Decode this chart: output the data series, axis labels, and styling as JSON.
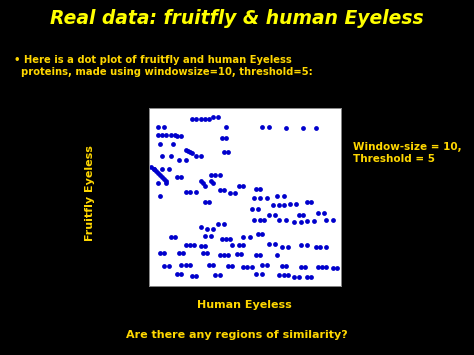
{
  "title": "Real data: fruitfly & human Eyeless",
  "title_color": "#FFFF00",
  "bullet_text": "Here is a dot plot of fruitfly and human Eyeless\n  proteins, made using windowsize=10, threshold=5:",
  "bullet_color": "#FFD700",
  "xlabel": "Human Eyeless",
  "xlabel_color": "#FFD700",
  "ylabel": "Fruitfly Eyeless",
  "ylabel_color": "#FFD700",
  "question": "Are there any regions of similarity?",
  "question_color": "#FFD700",
  "annotation": "Window-size = 10,\nThreshold = 5",
  "annotation_color": "#FFD700",
  "background_color": "#000000",
  "plot_bg_color": "#ffffff",
  "dot_color": "#0000CC",
  "xlim": [
    0,
    450
  ],
  "ylim": [
    0,
    850
  ],
  "xticks": [
    0,
    100,
    200,
    300,
    400
  ],
  "yticks": [
    0,
    200,
    400,
    600,
    800
  ],
  "dot_clusters": [
    [
      20,
      760
    ],
    [
      35,
      760
    ],
    [
      180,
      760
    ],
    [
      265,
      760
    ],
    [
      280,
      760
    ],
    [
      320,
      755
    ],
    [
      360,
      755
    ],
    [
      390,
      755
    ],
    [
      25,
      680
    ],
    [
      55,
      680
    ],
    [
      30,
      620
    ],
    [
      50,
      620
    ],
    [
      10,
      560
    ],
    [
      30,
      560
    ],
    [
      45,
      560
    ],
    [
      70,
      600
    ],
    [
      85,
      600
    ],
    [
      110,
      620
    ],
    [
      120,
      620
    ],
    [
      20,
      490
    ],
    [
      40,
      490
    ],
    [
      65,
      520
    ],
    [
      75,
      520
    ],
    [
      145,
      530
    ],
    [
      155,
      530
    ],
    [
      165,
      530
    ],
    [
      25,
      430
    ],
    [
      85,
      450
    ],
    [
      95,
      450
    ],
    [
      110,
      450
    ],
    [
      165,
      460
    ],
    [
      175,
      460
    ],
    [
      190,
      445
    ],
    [
      200,
      445
    ],
    [
      210,
      480
    ],
    [
      220,
      480
    ],
    [
      250,
      465
    ],
    [
      260,
      465
    ],
    [
      130,
      400
    ],
    [
      140,
      400
    ],
    [
      245,
      420
    ],
    [
      260,
      420
    ],
    [
      275,
      420
    ],
    [
      300,
      430
    ],
    [
      315,
      430
    ],
    [
      240,
      370
    ],
    [
      255,
      370
    ],
    [
      290,
      385
    ],
    [
      305,
      385
    ],
    [
      315,
      385
    ],
    [
      330,
      390
    ],
    [
      345,
      390
    ],
    [
      370,
      400
    ],
    [
      380,
      400
    ],
    [
      280,
      340
    ],
    [
      295,
      340
    ],
    [
      350,
      340
    ],
    [
      360,
      340
    ],
    [
      395,
      350
    ],
    [
      410,
      350
    ],
    [
      120,
      280
    ],
    [
      160,
      295
    ],
    [
      175,
      295
    ],
    [
      135,
      270
    ],
    [
      150,
      270
    ],
    [
      245,
      315
    ],
    [
      260,
      315
    ],
    [
      270,
      315
    ],
    [
      305,
      315
    ],
    [
      320,
      315
    ],
    [
      340,
      305
    ],
    [
      355,
      305
    ],
    [
      370,
      310
    ],
    [
      385,
      310
    ],
    [
      415,
      315
    ],
    [
      430,
      315
    ],
    [
      50,
      235
    ],
    [
      60,
      235
    ],
    [
      130,
      240
    ],
    [
      145,
      240
    ],
    [
      170,
      225
    ],
    [
      180,
      225
    ],
    [
      190,
      225
    ],
    [
      220,
      235
    ],
    [
      235,
      235
    ],
    [
      255,
      250
    ],
    [
      265,
      250
    ],
    [
      85,
      195
    ],
    [
      95,
      195
    ],
    [
      105,
      195
    ],
    [
      120,
      190
    ],
    [
      130,
      190
    ],
    [
      195,
      195
    ],
    [
      210,
      195
    ],
    [
      220,
      195
    ],
    [
      280,
      200
    ],
    [
      295,
      200
    ],
    [
      310,
      185
    ],
    [
      325,
      185
    ],
    [
      355,
      195
    ],
    [
      370,
      195
    ],
    [
      390,
      185
    ],
    [
      400,
      185
    ],
    [
      415,
      185
    ],
    [
      25,
      155
    ],
    [
      35,
      155
    ],
    [
      70,
      155
    ],
    [
      80,
      155
    ],
    [
      125,
      155
    ],
    [
      135,
      155
    ],
    [
      165,
      145
    ],
    [
      175,
      145
    ],
    [
      185,
      145
    ],
    [
      205,
      150
    ],
    [
      215,
      150
    ],
    [
      250,
      145
    ],
    [
      260,
      145
    ],
    [
      300,
      145
    ],
    [
      35,
      95
    ],
    [
      45,
      95
    ],
    [
      75,
      100
    ],
    [
      85,
      100
    ],
    [
      95,
      100
    ],
    [
      140,
      100
    ],
    [
      150,
      100
    ],
    [
      185,
      95
    ],
    [
      195,
      95
    ],
    [
      220,
      90
    ],
    [
      230,
      90
    ],
    [
      240,
      90
    ],
    [
      265,
      100
    ],
    [
      275,
      100
    ],
    [
      310,
      95
    ],
    [
      320,
      95
    ],
    [
      355,
      90
    ],
    [
      365,
      90
    ],
    [
      395,
      90
    ],
    [
      405,
      90
    ],
    [
      415,
      90
    ],
    [
      430,
      85
    ],
    [
      440,
      85
    ],
    [
      65,
      55
    ],
    [
      75,
      55
    ],
    [
      100,
      45
    ],
    [
      110,
      45
    ],
    [
      155,
      50
    ],
    [
      165,
      50
    ],
    [
      250,
      55
    ],
    [
      265,
      55
    ],
    [
      305,
      50
    ],
    [
      315,
      50
    ],
    [
      325,
      50
    ],
    [
      340,
      40
    ],
    [
      350,
      40
    ],
    [
      370,
      40
    ],
    [
      380,
      40
    ],
    [
      100,
      800
    ],
    [
      110,
      800
    ],
    [
      120,
      800
    ],
    [
      130,
      800
    ],
    [
      140,
      800
    ],
    [
      150,
      810
    ],
    [
      160,
      810
    ],
    [
      20,
      720
    ],
    [
      30,
      720
    ],
    [
      40,
      720
    ],
    [
      50,
      720
    ],
    [
      60,
      720
    ],
    [
      65,
      715
    ],
    [
      75,
      715
    ],
    [
      170,
      710
    ],
    [
      180,
      710
    ],
    [
      85,
      650
    ],
    [
      90,
      645
    ],
    [
      95,
      640
    ],
    [
      100,
      635
    ],
    [
      175,
      640
    ],
    [
      185,
      640
    ],
    [
      5,
      570
    ],
    [
      10,
      560
    ],
    [
      15,
      550
    ],
    [
      20,
      540
    ],
    [
      25,
      530
    ],
    [
      30,
      520
    ],
    [
      35,
      510
    ],
    [
      40,
      500
    ],
    [
      120,
      500
    ],
    [
      125,
      490
    ],
    [
      130,
      480
    ],
    [
      145,
      500
    ],
    [
      150,
      490
    ]
  ]
}
